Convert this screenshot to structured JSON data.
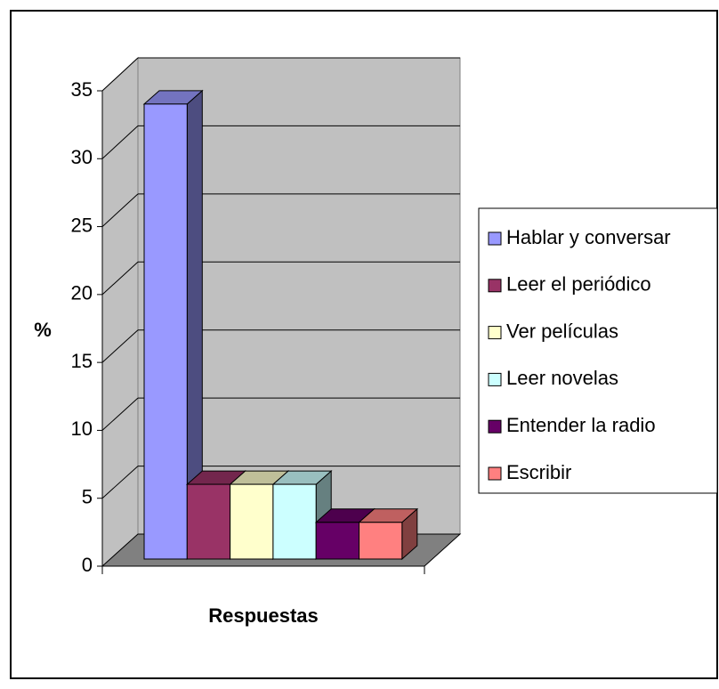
{
  "chart_data": {
    "type": "bar3d",
    "y_label": "%",
    "x_label": "Respuestas",
    "ylim": [
      0,
      35
    ],
    "yticks": [
      0,
      5,
      10,
      15,
      20,
      25,
      30,
      35
    ],
    "grid": true,
    "legend": "right",
    "series": [
      {
        "name": "Hablar y conversar",
        "color": "#9999ff",
        "values": [
          33.5
        ]
      },
      {
        "name": "Leer el periódico",
        "color": "#993366",
        "values": [
          5.5
        ]
      },
      {
        "name": "Ver películas",
        "color": "#ffffcc",
        "values": [
          5.5
        ]
      },
      {
        "name": "Leer novelas",
        "color": "#ccffff",
        "values": [
          5.5
        ]
      },
      {
        "name": "Entender la radio",
        "color": "#660066",
        "values": [
          2.7
        ]
      },
      {
        "name": "Escribir",
        "color": "#ff8080",
        "values": [
          2.7
        ]
      }
    ]
  }
}
